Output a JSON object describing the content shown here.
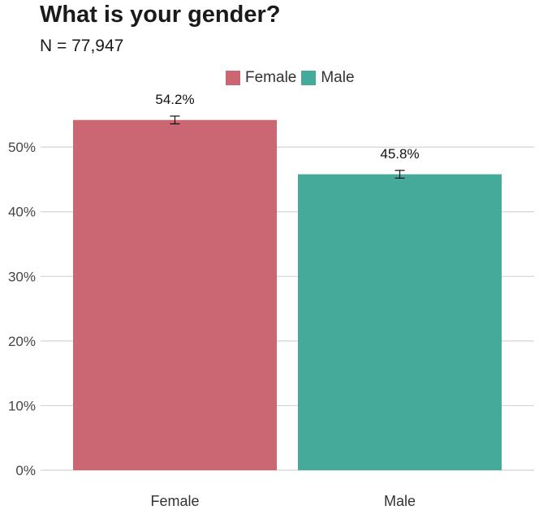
{
  "chart_data": {
    "type": "bar",
    "title": "What is your gender?",
    "subtitle": "N = 77,947",
    "categories": [
      "Female",
      "Male"
    ],
    "values": [
      54.2,
      45.8
    ],
    "data_labels": [
      "54.2%",
      "45.8%"
    ],
    "error_bars": [
      [
        53.6,
        54.8
      ],
      [
        45.2,
        46.4
      ]
    ],
    "colors": [
      "#cb6673",
      "#46aa9a"
    ],
    "legend": [
      "Female",
      "Male"
    ],
    "legend_position": "top",
    "ylim": [
      0,
      55
    ],
    "yticks": [
      0,
      10,
      20,
      30,
      40,
      50
    ],
    "ytick_labels": [
      "0%",
      "10%",
      "20%",
      "30%",
      "40%",
      "50%"
    ],
    "grid": "horizontal",
    "xlabel": "",
    "ylabel": ""
  }
}
